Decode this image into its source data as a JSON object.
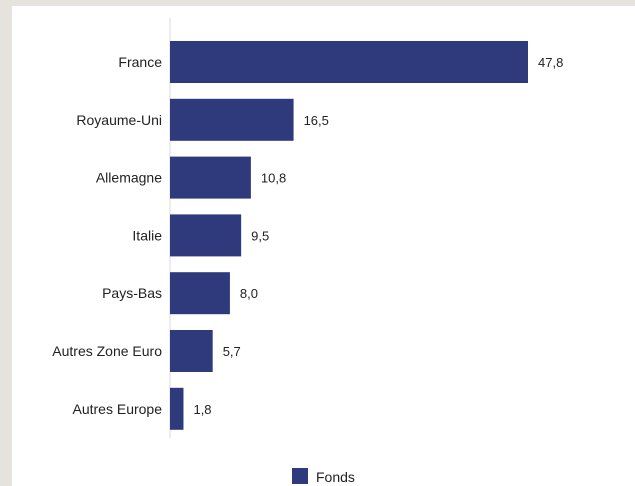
{
  "chart_data": {
    "type": "bar",
    "orientation": "horizontal",
    "categories": [
      "France",
      "Royaume-Uni",
      "Allemagne",
      "Italie",
      "Pays-Bas",
      "Autres Zone Euro",
      "Autres Europe"
    ],
    "series": [
      {
        "name": "Fonds",
        "values": [
          47.8,
          16.5,
          10.8,
          9.5,
          8.0,
          5.7,
          1.8
        ],
        "labels": [
          "47,8",
          "16,5",
          "10,8",
          "9,5",
          "8,0",
          "5,7",
          "1,8"
        ]
      }
    ],
    "colors": {
      "bar": "#2e3a7b",
      "axis": "#d9d9d9",
      "background": "#ffffff",
      "frame": "#e6e3df"
    },
    "legend_position": "bottom-center",
    "grid": false
  }
}
